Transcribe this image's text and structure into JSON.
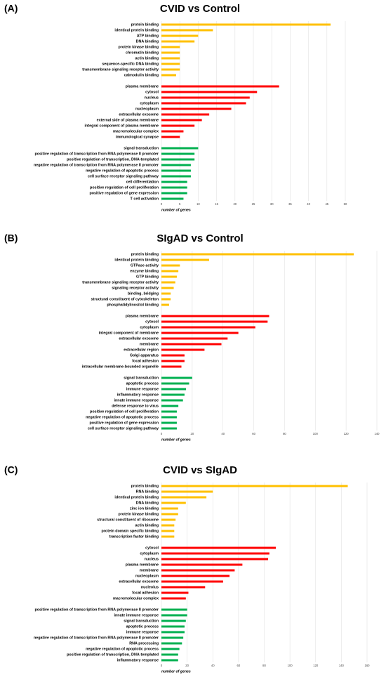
{
  "chart_data": [
    {
      "type": "bar",
      "orientation": "horizontal",
      "panel": "(A)",
      "title": "CVID vs Control",
      "xlabel": "number of genes",
      "xlim": [
        0,
        50
      ],
      "xticks": [
        0,
        5,
        10,
        15,
        20,
        25,
        30,
        35,
        40,
        45,
        50
      ],
      "grid": true,
      "groups": [
        {
          "color": "#FFC000",
          "categories": [
            "protein binding",
            "identical protein binding",
            "ATP binding",
            "DNA binding",
            "protein kinase binding",
            "chromatin binding",
            "actin binding",
            "sequence-specific DNA binding",
            "transmembrane signaling receptor activity",
            "calmodulin binding"
          ],
          "values": [
            46,
            14,
            10,
            9,
            5,
            5,
            5,
            5,
            5,
            4
          ]
        },
        {
          "color": "#FF0000",
          "categories": [
            "plasma membrane",
            "cytosol",
            "nucleus",
            "cytoplasm",
            "nucleoplasm",
            "extracellular exosome",
            "external side of plasma membrane",
            "integral component of plasma membrane",
            "macromolecular complex",
            "immunological synapse"
          ],
          "values": [
            32,
            26,
            24,
            23,
            19,
            13,
            11,
            9,
            6,
            5
          ]
        },
        {
          "color": "#00B050",
          "categories": [
            "signal transduction",
            "positive regulation of transcription from RNA polymerase II promoter",
            "positive regulation of transcription, DNA-templated",
            "negative regulation of transcription from RNA polymerase II promoter",
            "negative regulation of apoptotic process",
            "cell surface receptor signaling pathway",
            "cell differentiation",
            "positive regulation of cell proliferation",
            "positive regulation of gene expression",
            "T cell activation"
          ],
          "values": [
            10,
            9,
            9,
            8,
            8,
            8,
            7,
            7,
            7,
            6
          ]
        }
      ]
    },
    {
      "type": "bar",
      "orientation": "horizontal",
      "panel": "(B)",
      "title": "SIgAD vs Control",
      "xlabel": "number of genes",
      "xlim": [
        0,
        140
      ],
      "xticks": [
        0,
        20,
        40,
        60,
        80,
        100,
        120,
        140
      ],
      "grid": true,
      "groups": [
        {
          "color": "#FFC000",
          "categories": [
            "protein binding",
            "identical protein binding",
            "GTPase activity",
            "enzyme binding",
            "GTP binding",
            "transmembrane signaling receptor activity",
            "signaling receptor activity",
            "binding, bridging",
            "structural constituent of cytoskeleton",
            "phosphatidylinositol binding"
          ],
          "values": [
            125,
            31,
            12,
            11,
            10,
            9,
            8,
            6,
            6,
            5
          ]
        },
        {
          "color": "#FF0000",
          "categories": [
            "plasma membrane",
            "cytosol",
            "cytoplasm",
            "integral component of membrane",
            "extracellular exosome",
            "membrane",
            "extracellular region",
            "Golgi apparatus",
            "focal adhesion",
            "intracellular membrane-bounded organelle"
          ],
          "values": [
            70,
            69,
            61,
            50,
            43,
            39,
            28,
            15,
            15,
            13
          ]
        },
        {
          "color": "#00B050",
          "categories": [
            "signal transduction",
            "apoptotic process",
            "immune response",
            "inflammatory response",
            "innate immune response",
            "defense response to virus",
            "positive regulation of cell proliferation",
            "negative regulation of apoptotic process",
            "positive regulation of gene expression",
            "cell surface receptor signaling pathway"
          ],
          "values": [
            20,
            18,
            16,
            15,
            14,
            11,
            10,
            10,
            10,
            10
          ]
        }
      ]
    },
    {
      "type": "bar",
      "orientation": "horizontal",
      "panel": "(C)",
      "title": "CVID vs SIgAD",
      "xlabel": "number of genes",
      "xlim": [
        0,
        160
      ],
      "xticks": [
        0,
        20,
        40,
        60,
        80,
        100,
        120,
        140,
        160
      ],
      "grid": true,
      "groups": [
        {
          "color": "#FFC000",
          "categories": [
            "protein binding",
            "RNA binding",
            "identical protein binding",
            "DNA binding",
            "zinc ion binding",
            "protein kinase binding",
            "structural constituent of ribosome",
            "actin binding",
            "protein domain specific binding",
            "transcription factor binding"
          ],
          "values": [
            145,
            40,
            35,
            19,
            13,
            13,
            11,
            10,
            10,
            10
          ]
        },
        {
          "color": "#FF0000",
          "categories": [
            "cytosol",
            "cytoplasm",
            "nucleus",
            "plasma membrane",
            "membrane",
            "nucleoplasm",
            "extracellular exosome",
            "nucleolus",
            "focal adhesion",
            "macromolecular complex"
          ],
          "values": [
            89,
            84,
            83,
            63,
            57,
            53,
            48,
            34,
            21,
            19
          ]
        },
        {
          "color": "#00B050",
          "categories": [
            "positive regulation of transcription from RNA polymerase II promoter",
            "innate immune response",
            "signal transduction",
            "apoptotic process",
            "immune response",
            "negative regulation of transcription from RNA polymerase II promoter",
            "RNA processing",
            "negative regulation of apoptotic process",
            "positive regulation of transcription, DNA-templated",
            "inflammatory response"
          ],
          "values": [
            20,
            20,
            19,
            18,
            18,
            17,
            16,
            14,
            13,
            13
          ]
        }
      ]
    }
  ]
}
